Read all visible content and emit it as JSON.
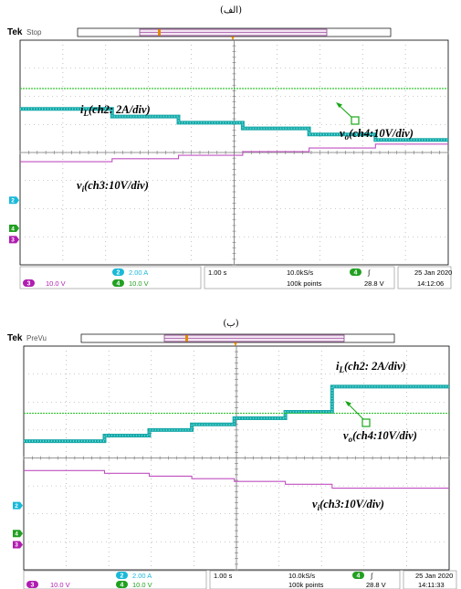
{
  "chart_data": [
    {
      "type": "line",
      "caption": "(الف)",
      "brand": "Tek",
      "mode": "Stop",
      "xrange": [
        0,
        10
      ],
      "yrange_div": [
        -4,
        4
      ],
      "grid": true,
      "series": [
        {
          "id": "iL",
          "color": "#19a8a8",
          "dot": "#6ee0e0",
          "points": [
            [
              0,
              1.55
            ],
            [
              2.15,
              1.55
            ],
            [
              2.15,
              1.28
            ],
            [
              3.7,
              1.28
            ],
            [
              3.7,
              1.06
            ],
            [
              5.2,
              1.06
            ],
            [
              5.2,
              0.86
            ],
            [
              6.75,
              0.86
            ],
            [
              6.75,
              0.64
            ],
            [
              8.3,
              0.64
            ],
            [
              8.3,
              0.45
            ],
            [
              10,
              0.45
            ]
          ]
        },
        {
          "id": "vo",
          "color": "#22c022",
          "dot": "#55e055",
          "points": [
            [
              0,
              2.28
            ],
            [
              10,
              2.28
            ]
          ]
        },
        {
          "id": "vi",
          "color": "#c050c0",
          "dot": "#e090e0",
          "points": [
            [
              0,
              -0.33
            ],
            [
              2.15,
              -0.33
            ],
            [
              2.15,
              -0.22
            ],
            [
              3.7,
              -0.22
            ],
            [
              3.7,
              -0.1
            ],
            [
              5.2,
              -0.1
            ],
            [
              5.2,
              0.03
            ],
            [
              6.75,
              0.03
            ],
            [
              6.75,
              0.16
            ],
            [
              8.3,
              0.16
            ],
            [
              8.3,
              0.3
            ],
            [
              10,
              0.3
            ]
          ]
        }
      ],
      "annotations": {
        "iL": {
          "main": "i",
          "sub": "L",
          "rest": "(ch2: 2A/div)",
          "color": "#17c0dc"
        },
        "vo": {
          "main": "v",
          "sub": "o",
          "rest": "(ch4:10V/div)",
          "color": "#17a817"
        },
        "vi": {
          "main": "v",
          "sub": "i",
          "rest": "(ch3:10V/div)",
          "color": "#c020c0"
        }
      },
      "markers": [
        "2",
        "3",
        "4"
      ],
      "status": {
        "ch2_num": "2",
        "ch2_scale": "2.00 A",
        "ch3_num": "3",
        "ch3_scale": "10.0 V",
        "ch4_num": "4",
        "ch4_scale": "10.0 V",
        "timebase": "1.00 s",
        "rate": "10.0kS/s",
        "points": "100k points",
        "trig_ch": "4",
        "trig_sym": "∫",
        "trig_level": "28.8 V",
        "date": "25 Jan  2020",
        "time": "14:12:06"
      }
    },
    {
      "type": "line",
      "caption": "(ب)",
      "brand": "Tek",
      "mode": "PreVu",
      "xrange": [
        0,
        10
      ],
      "yrange_div": [
        -4,
        4
      ],
      "grid": true,
      "series": [
        {
          "id": "iL",
          "color": "#19a8a8",
          "dot": "#6ee0e0",
          "points": [
            [
              0,
              0.6
            ],
            [
              1.9,
              0.6
            ],
            [
              1.9,
              0.8
            ],
            [
              2.95,
              0.8
            ],
            [
              2.95,
              1.0
            ],
            [
              3.95,
              1.0
            ],
            [
              3.95,
              1.2
            ],
            [
              4.95,
              1.2
            ],
            [
              4.95,
              1.42
            ],
            [
              6.15,
              1.42
            ],
            [
              6.15,
              1.65
            ],
            [
              7.25,
              1.65
            ],
            [
              7.25,
              2.55
            ],
            [
              10,
              2.55
            ]
          ]
        },
        {
          "id": "vo",
          "color": "#22c022",
          "dot": "#55e055",
          "points": [
            [
              0,
              1.6
            ],
            [
              10,
              1.6
            ]
          ]
        },
        {
          "id": "vi",
          "color": "#c050c0",
          "dot": "#e090e0",
          "points": [
            [
              0,
              -0.45
            ],
            [
              1.9,
              -0.45
            ],
            [
              1.9,
              -0.55
            ],
            [
              2.95,
              -0.55
            ],
            [
              2.95,
              -0.65
            ],
            [
              3.95,
              -0.65
            ],
            [
              3.95,
              -0.74
            ],
            [
              4.95,
              -0.74
            ],
            [
              4.95,
              -0.84
            ],
            [
              6.15,
              -0.84
            ],
            [
              6.15,
              -0.94
            ],
            [
              7.25,
              -0.94
            ],
            [
              7.25,
              -1.08
            ],
            [
              10,
              -1.08
            ]
          ]
        }
      ],
      "annotations": {
        "iL": {
          "main": "i",
          "sub": "L",
          "rest": "(ch2: 2A/div)",
          "color": "#17c0dc"
        },
        "vo": {
          "main": "v",
          "sub": "o",
          "rest": "(ch4:10V/div)",
          "color": "#17a817"
        },
        "vi": {
          "main": "v",
          "sub": "i",
          "rest": "(ch3:10V/div)",
          "color": "#c020c0"
        }
      },
      "markers": [
        "2",
        "3",
        "4"
      ],
      "status": {
        "ch2_num": "2",
        "ch2_scale": "2.00 A",
        "ch3_num": "3",
        "ch3_scale": "10.0 V",
        "ch4_num": "4",
        "ch4_scale": "10.0 V",
        "timebase": "1.00 s",
        "rate": "10.0kS/s",
        "points": "100k points",
        "trig_ch": "4",
        "trig_sym": "∫",
        "trig_level": "28.8 V",
        "date": "25 Jan  2020",
        "time": "14:11:33"
      }
    }
  ]
}
